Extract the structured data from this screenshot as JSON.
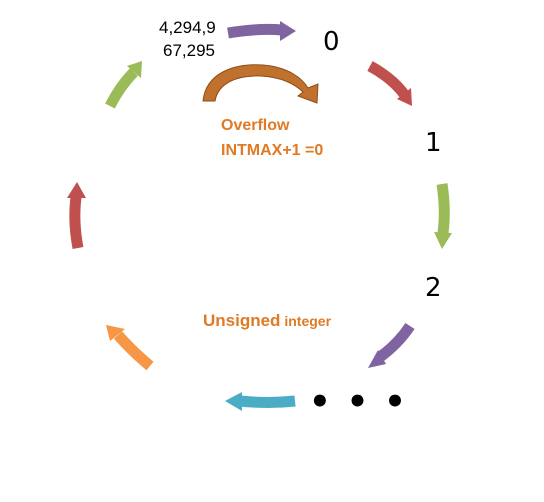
{
  "labels": {
    "max_line1": "4,294,9",
    "max_line2": "67,295",
    "zero": "0",
    "one": "1",
    "two": "2",
    "ellipsis": "• • •",
    "overflow": "Overflow",
    "overflow_rule": "INTMAX+1 =0",
    "caption_bold": "Unsigned",
    "caption_small": " integer"
  },
  "colors": {
    "purple": "#8064A2",
    "red": "#C0504D",
    "green": "#9BBB59",
    "blue": "#4BACC6",
    "orange": "#F79646",
    "overflow_brown": "#C0712D",
    "text_orange": "#E07A24"
  },
  "arrows": [
    {
      "name": "arrow-max-to-zero",
      "color": "purple",
      "direction": "right"
    },
    {
      "name": "arrow-zero-to-one",
      "color": "red",
      "direction": "down-right"
    },
    {
      "name": "arrow-one-to-two",
      "color": "green",
      "direction": "down"
    },
    {
      "name": "arrow-two-to-ellipsis",
      "color": "purple",
      "direction": "down-left"
    },
    {
      "name": "arrow-ellipsis-left",
      "color": "blue",
      "direction": "left"
    },
    {
      "name": "arrow-left-lower",
      "color": "orange",
      "direction": "up-left"
    },
    {
      "name": "arrow-left-upper",
      "color": "red",
      "direction": "up"
    },
    {
      "name": "arrow-upper-left",
      "color": "green",
      "direction": "up-right"
    },
    {
      "name": "overflow-curved-arrow",
      "color": "overflow_brown",
      "direction": "curved-right"
    }
  ]
}
